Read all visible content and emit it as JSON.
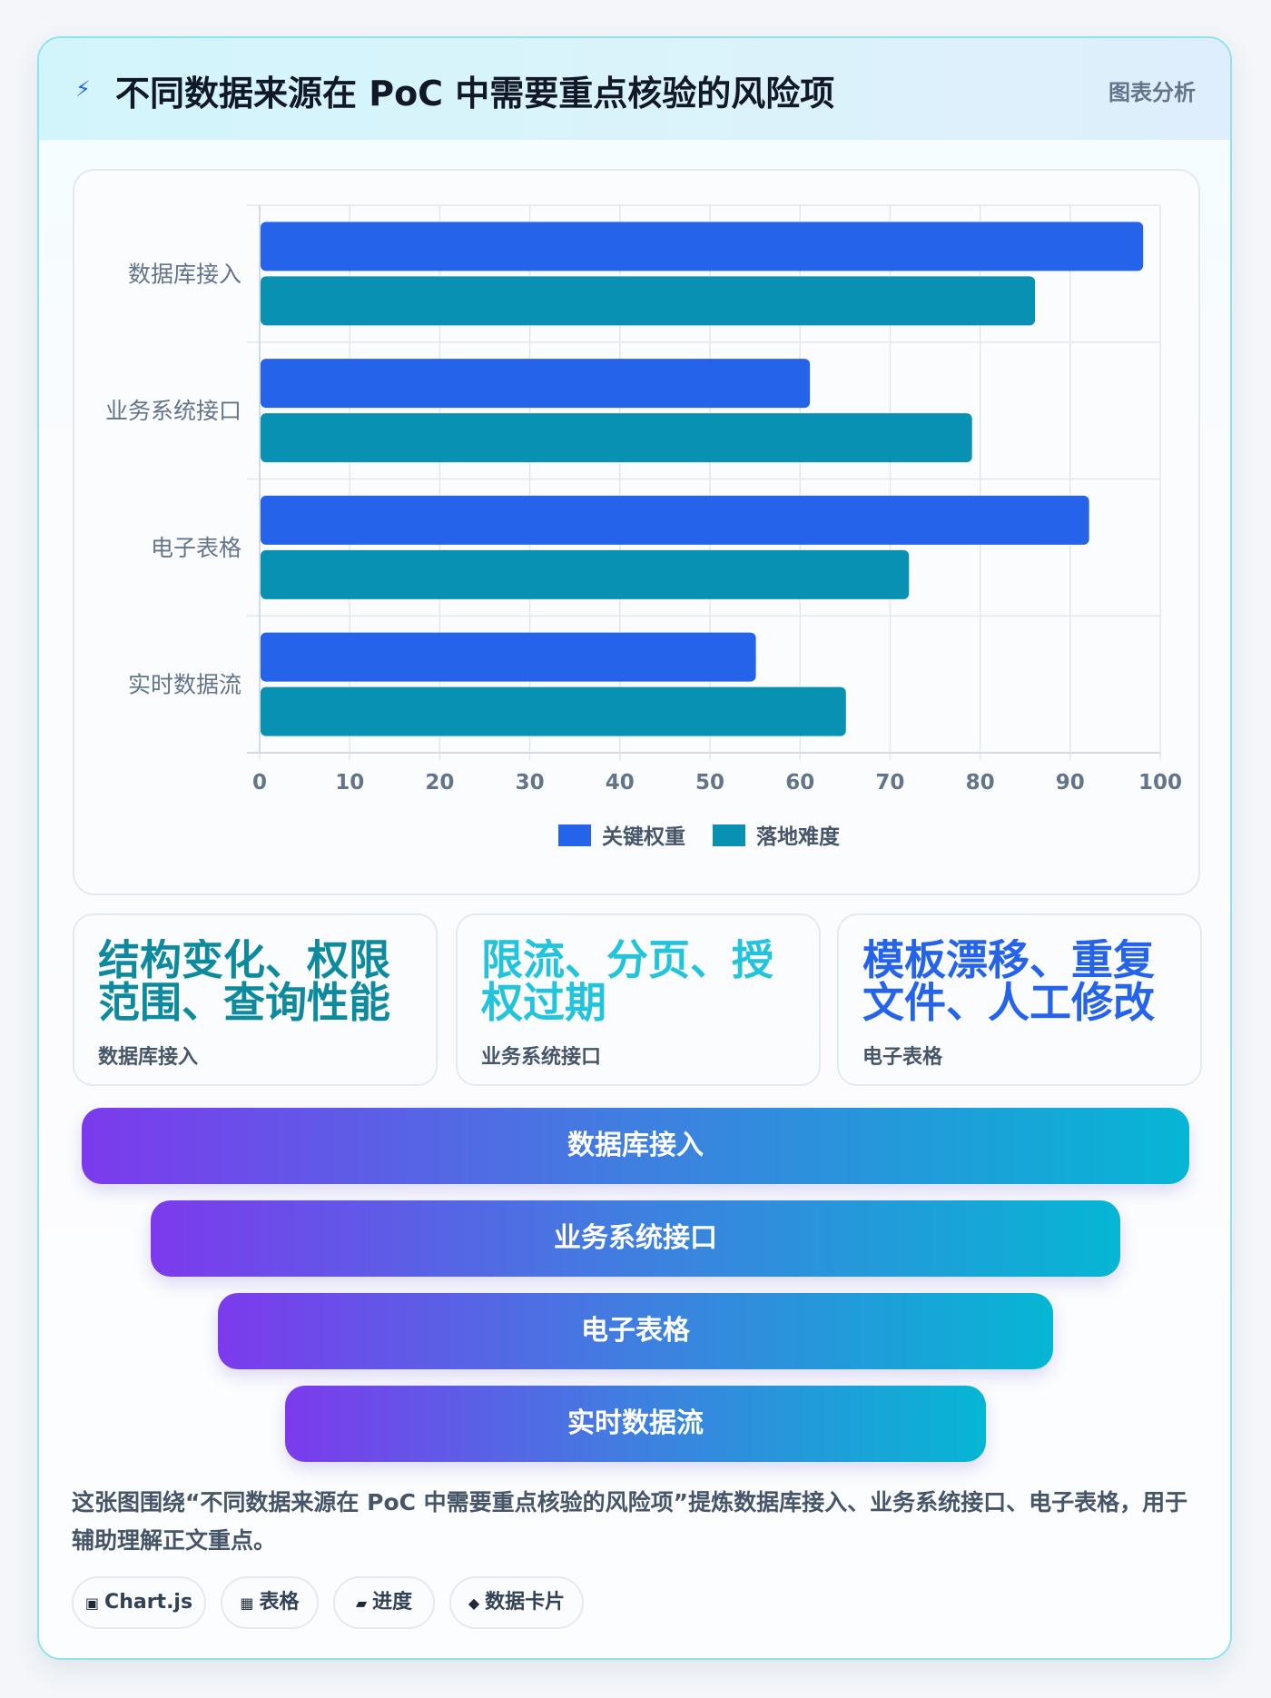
{
  "header": {
    "icon": "lightning-icon",
    "title": "不同数据来源在 PoC 中需要重点核验的风险项",
    "tag": "图表分析"
  },
  "chart_data": {
    "type": "bar",
    "orientation": "horizontal",
    "categories": [
      "数据库接入",
      "业务系统接口",
      "电子表格",
      "实时数据流"
    ],
    "series": [
      {
        "name": "关键权重",
        "color": "#2563eb",
        "values": [
          98,
          61,
          92,
          55
        ]
      },
      {
        "name": "落地难度",
        "color": "#0891b2",
        "values": [
          86,
          79,
          72,
          65
        ]
      }
    ],
    "xlim": [
      0,
      100
    ],
    "x_ticks": [
      "0",
      "10",
      "20",
      "30",
      "40",
      "50",
      "60",
      "70",
      "80",
      "90",
      "100"
    ],
    "grid": true,
    "legend_position": "bottom"
  },
  "stats": [
    {
      "value": "结构变化、权限范围、查询性能",
      "label": "数据库接入",
      "color": "#0e8a9e"
    },
    {
      "value": "限流、分页、授权过期",
      "label": "业务系统接口",
      "color": "#22c3dd"
    },
    {
      "value": "模板漂移、重复文件、人工修改",
      "label": "电子表格",
      "color": "#2563eb"
    }
  ],
  "funnel": [
    "数据库接入",
    "业务系统接口",
    "电子表格",
    "实时数据流"
  ],
  "summary": "这张图围绕“不同数据来源在 PoC 中需要重点核验的风险项”提炼数据库接入、业务系统接口、电子表格，用于辅助理解正文重点。",
  "tags": [
    {
      "icon": "▣",
      "label": "Chart.js"
    },
    {
      "icon": "▦",
      "label": "表格"
    },
    {
      "icon": "▰",
      "label": "进度"
    },
    {
      "icon": "◆",
      "label": "数据卡片"
    }
  ]
}
